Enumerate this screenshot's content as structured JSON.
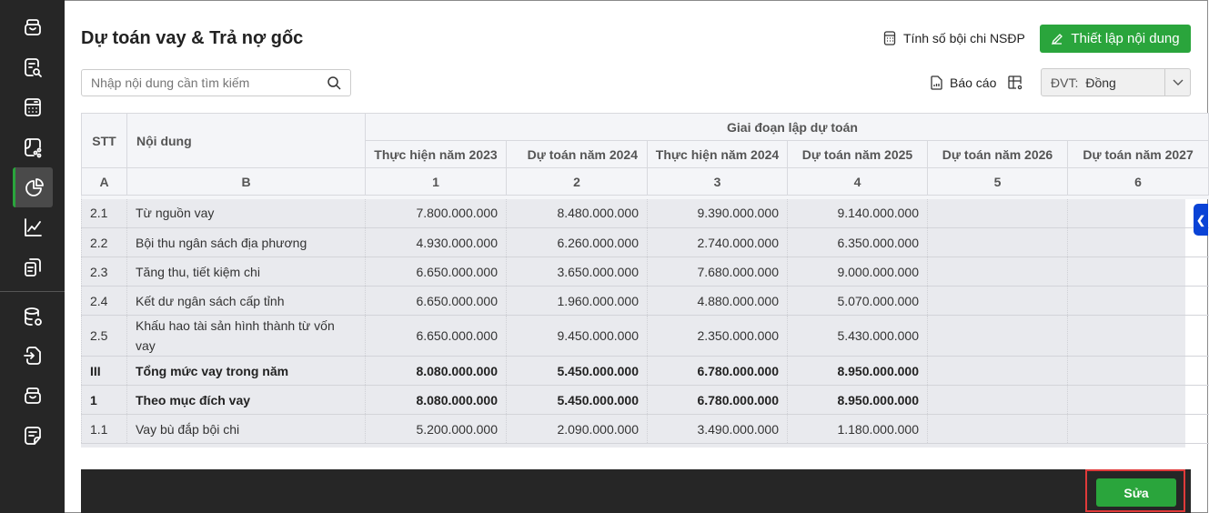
{
  "sidebar": {
    "items": [
      {
        "icon": "archive-icon"
      },
      {
        "icon": "document-search-icon"
      },
      {
        "icon": "calculator-icon"
      },
      {
        "icon": "share-document-icon"
      },
      {
        "icon": "pie-chart-icon",
        "active": true
      },
      {
        "icon": "line-chart-icon"
      },
      {
        "icon": "copy-document-icon"
      },
      {
        "icon": "database-settings-icon"
      },
      {
        "icon": "file-import-icon"
      },
      {
        "icon": "inbox-icon"
      },
      {
        "icon": "note-icon"
      }
    ]
  },
  "header": {
    "title": "Dự toán vay & Trả nợ gốc",
    "calc_link": "Tính số bội chi NSĐP",
    "setup_button": "Thiết lập nội dung",
    "report_link": "Báo cáo",
    "unit_label": "ĐVT:",
    "unit_value": "Đồng"
  },
  "search": {
    "placeholder": "Nhập nội dung cần tìm kiếm"
  },
  "table": {
    "stt_header": "STT",
    "content_header": "Nội dung",
    "group_header": "Giai đoạn lập dự toán",
    "columns": [
      "Thực hiện năm 2023",
      "Dự toán năm 2024",
      "Thực hiện năm 2024",
      "Dự toán năm 2025",
      "Dự toán năm 2026",
      "Dự toán năm 2027"
    ],
    "index_row": [
      "A",
      "B",
      "1",
      "2",
      "3",
      "4",
      "5",
      "6"
    ],
    "rows": [
      {
        "stt": "2.1",
        "content": "Từ nguồn vay",
        "values": [
          "7.800.000.000",
          "8.480.000.000",
          "9.390.000.000",
          "9.140.000.000",
          "",
          ""
        ]
      },
      {
        "stt": "2.2",
        "content": "Bội thu ngân sách địa phương",
        "values": [
          "4.930.000.000",
          "6.260.000.000",
          "2.740.000.000",
          "6.350.000.000",
          "",
          ""
        ]
      },
      {
        "stt": "2.3",
        "content": "Tăng thu, tiết kiệm chi",
        "values": [
          "6.650.000.000",
          "3.650.000.000",
          "7.680.000.000",
          "9.000.000.000",
          "",
          ""
        ]
      },
      {
        "stt": "2.4",
        "content": "Kết dư ngân sách cấp tỉnh",
        "values": [
          "6.650.000.000",
          "1.960.000.000",
          "4.880.000.000",
          "5.070.000.000",
          "",
          ""
        ]
      },
      {
        "stt": "2.5",
        "content": "Khấu hao tài sản hình thành từ vốn vay",
        "values": [
          "6.650.000.000",
          "9.450.000.000",
          "2.350.000.000",
          "5.430.000.000",
          "",
          ""
        ],
        "tall": true
      },
      {
        "stt": "III",
        "content": "Tổng mức vay trong năm",
        "values": [
          "8.080.000.000",
          "5.450.000.000",
          "6.780.000.000",
          "8.950.000.000",
          "",
          ""
        ],
        "bold": true
      },
      {
        "stt": "1",
        "content": "Theo mục đích vay",
        "values": [
          "8.080.000.000",
          "5.450.000.000",
          "6.780.000.000",
          "8.950.000.000",
          "",
          ""
        ],
        "bold": true
      },
      {
        "stt": "1.1",
        "content": "Vay bù đắp bội chi",
        "values": [
          "5.200.000.000",
          "2.090.000.000",
          "3.490.000.000",
          "1.180.000.000",
          "",
          ""
        ]
      }
    ]
  },
  "footer": {
    "edit_button": "Sửa"
  }
}
